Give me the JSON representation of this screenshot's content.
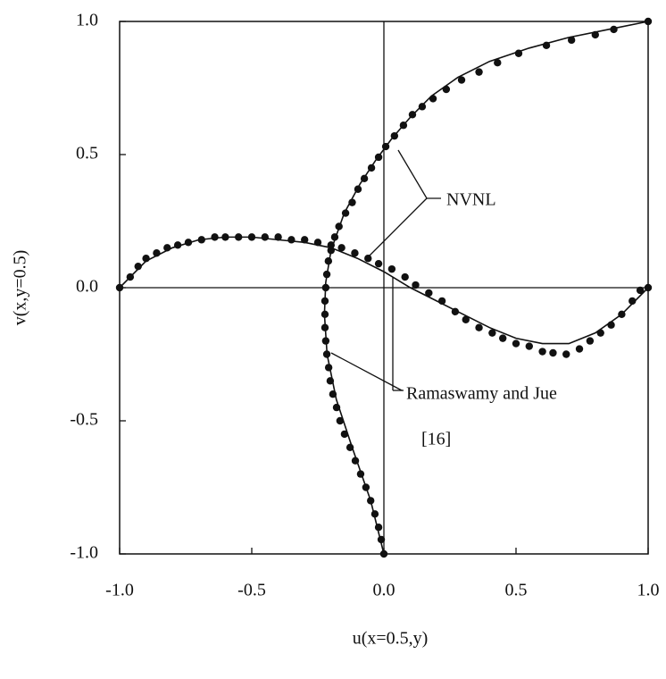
{
  "chart_data": {
    "type": "scatter",
    "x_label": "u(x=0.5,y)",
    "y_label": "v(x,y=0.5)",
    "xlim": [
      -1.0,
      1.0
    ],
    "ylim": [
      -1.0,
      1.0
    ],
    "xticks": [
      {
        "value": -1.0,
        "label": "-1.0"
      },
      -0.5,
      {
        "value": 0.0,
        "label": "0.0"
      },
      0.5,
      {
        "value": 1.0,
        "label": "1.0"
      }
    ],
    "yticks": [
      {
        "value": -1.0,
        "label": "-1.0"
      },
      -0.5,
      {
        "value": 0.0,
        "label": "0.0"
      },
      0.5,
      {
        "value": 1.0,
        "label": "1.0"
      }
    ],
    "zero_lines": true,
    "annotations": [
      "NVNL",
      "Ramaswamy and Jue",
      "[16]"
    ],
    "series": [
      {
        "style": "line",
        "color": "#111111",
        "x": [
          0,
          -0.05,
          -0.12,
          -0.18,
          -0.215,
          -0.225,
          -0.22,
          -0.2,
          -0.15,
          -0.09,
          -0.03,
          0.03,
          0.1,
          0.18,
          0.28,
          0.4,
          0.55,
          0.7,
          0.85,
          1.0
        ],
        "values": [
          -1.0,
          -0.8,
          -0.6,
          -0.42,
          -0.25,
          -0.1,
          0.02,
          0.14,
          0.28,
          0.39,
          0.48,
          0.56,
          0.64,
          0.72,
          0.79,
          0.85,
          0.9,
          0.94,
          0.97,
          1.0
        ]
      },
      {
        "style": "markers",
        "color": "#111111",
        "x": [
          0,
          -0.01,
          -0.02,
          -0.034,
          -0.05,
          -0.068,
          -0.088,
          -0.108,
          -0.128,
          -0.149,
          -0.166,
          -0.179,
          -0.193,
          -0.203,
          -0.209,
          -0.216,
          -0.22,
          -0.223,
          -0.223,
          -0.223,
          -0.22,
          -0.216,
          -0.21,
          -0.2,
          -0.186,
          -0.17,
          -0.145,
          -0.12,
          -0.098,
          -0.074,
          -0.047,
          -0.02,
          0.007,
          0.04,
          0.074,
          0.108,
          0.145,
          0.186,
          0.236,
          0.294,
          0.36,
          0.43,
          0.51,
          0.615,
          0.71,
          0.8,
          0.87,
          1.0
        ],
        "values": [
          -1.0,
          -0.946,
          -0.9,
          -0.85,
          -0.8,
          -0.75,
          -0.7,
          -0.65,
          -0.6,
          -0.55,
          -0.5,
          -0.45,
          -0.4,
          -0.35,
          -0.3,
          -0.25,
          -0.2,
          -0.15,
          -0.1,
          -0.05,
          0,
          0.05,
          0.1,
          0.14,
          0.19,
          0.23,
          0.28,
          0.32,
          0.37,
          0.41,
          0.45,
          0.49,
          0.53,
          0.57,
          0.61,
          0.65,
          0.68,
          0.71,
          0.745,
          0.78,
          0.81,
          0.845,
          0.88,
          0.91,
          0.93,
          0.95,
          0.97,
          1.0
        ]
      },
      {
        "style": "line",
        "color": "#111111",
        "x": [
          -1.0,
          -0.9,
          -0.8,
          -0.7,
          -0.6,
          -0.5,
          -0.4,
          -0.3,
          -0.2,
          -0.1,
          0,
          0.1,
          0.2,
          0.3,
          0.4,
          0.5,
          0.6,
          0.7,
          0.8,
          0.9,
          1.0
        ],
        "values": [
          0,
          0.1,
          0.15,
          0.18,
          0.19,
          0.19,
          0.18,
          0.17,
          0.15,
          0.11,
          0.06,
          0.0,
          -0.05,
          -0.1,
          -0.15,
          -0.19,
          -0.21,
          -0.21,
          -0.17,
          -0.1,
          0
        ]
      },
      {
        "style": "markers",
        "color": "#111111",
        "x": [
          -1.0,
          -0.96,
          -0.93,
          -0.9,
          -0.86,
          -0.82,
          -0.78,
          -0.74,
          -0.69,
          -0.64,
          -0.6,
          -0.55,
          -0.5,
          -0.45,
          -0.4,
          -0.35,
          -0.3,
          -0.25,
          -0.2,
          -0.16,
          -0.11,
          -0.06,
          -0.02,
          0.03,
          0.08,
          0.12,
          0.17,
          0.22,
          0.27,
          0.31,
          0.36,
          0.41,
          0.45,
          0.5,
          0.55,
          0.6,
          0.64,
          0.69,
          0.74,
          0.78,
          0.82,
          0.86,
          0.9,
          0.94,
          0.97,
          1.0
        ],
        "values": [
          0,
          0.04,
          0.08,
          0.11,
          0.13,
          0.15,
          0.16,
          0.17,
          0.18,
          0.19,
          0.19,
          0.19,
          0.19,
          0.19,
          0.19,
          0.18,
          0.18,
          0.17,
          0.16,
          0.15,
          0.13,
          0.11,
          0.09,
          0.07,
          0.04,
          0.01,
          -0.02,
          -0.05,
          -0.09,
          -0.12,
          -0.15,
          -0.17,
          -0.19,
          -0.21,
          -0.22,
          -0.24,
          -0.245,
          -0.25,
          -0.23,
          -0.2,
          -0.17,
          -0.14,
          -0.1,
          -0.05,
          -0.01,
          0
        ]
      }
    ]
  }
}
